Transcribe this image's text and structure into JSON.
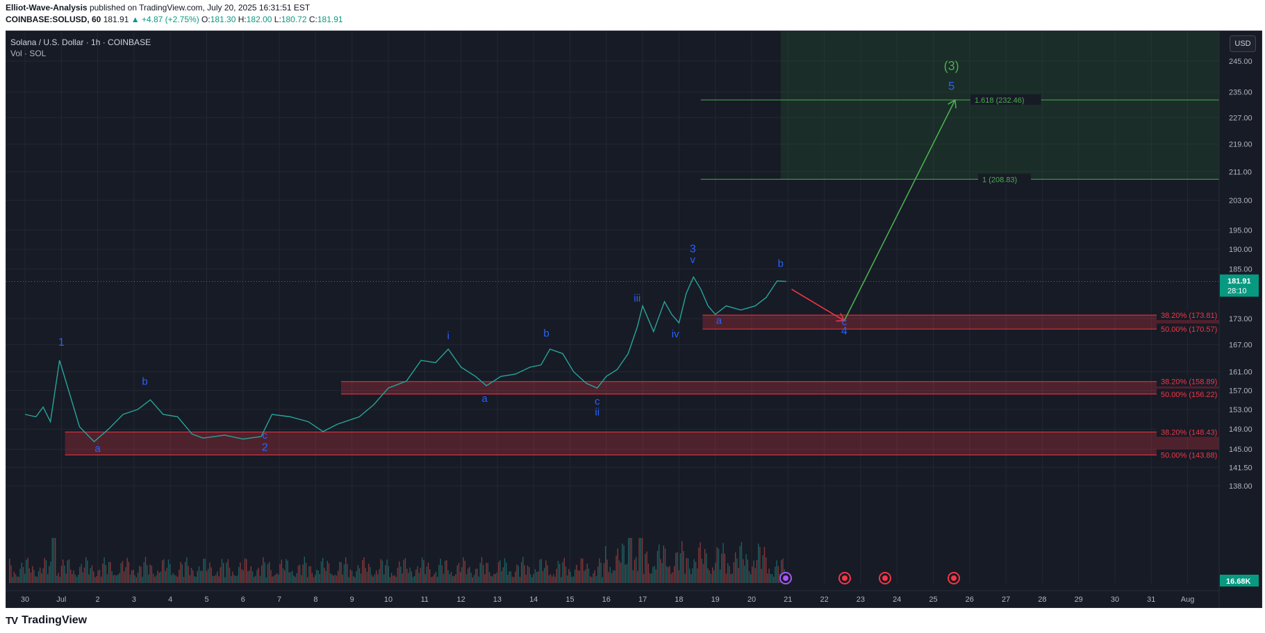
{
  "header": {
    "author": "Elliot-Wave-Analysis",
    "published": "published on TradingView.com, July 20, 2025 16:31:51 EST",
    "symbol": "COINBASE:SOLUSD, 60",
    "last": "181.91",
    "change": "▲ +4.87 (+2.75%)",
    "o_label": "O:",
    "o": "181.30",
    "h_label": "H:",
    "h": "182.00",
    "l_label": "L:",
    "l": "180.72",
    "c_label": "C:",
    "c": "181.91"
  },
  "legend": {
    "title": "Solana / U.S. Dollar · 1h · COINBASE",
    "vol": "Vol · SOL"
  },
  "currency_button": "USD",
  "footer": {
    "brand": "TradingView",
    "mark": "TV"
  },
  "chart_data": {
    "type": "line",
    "title": "Solana / U.S. Dollar · 1h · COINBASE",
    "price_axis": {
      "ticks": [
        "245.00",
        "235.00",
        "227.00",
        "219.00",
        "211.00",
        "203.00",
        "195.00",
        "190.00",
        "185.00",
        "173.00",
        "167.00",
        "161.00",
        "157.00",
        "153.00",
        "149.00",
        "145.00",
        "141.50",
        "138.00"
      ],
      "current_price": "181.91",
      "countdown": "28:10",
      "volume_label": "16.68K"
    },
    "time_axis": {
      "ticks": [
        "30",
        "Jul",
        "2",
        "3",
        "4",
        "5",
        "6",
        "7",
        "8",
        "9",
        "10",
        "11",
        "12",
        "13",
        "14",
        "15",
        "16",
        "17",
        "18",
        "19",
        "20",
        "21",
        "22",
        "23",
        "24",
        "25",
        "26",
        "27",
        "28",
        "29",
        "30",
        "31",
        "Aug"
      ]
    },
    "price_path": [
      {
        "t": 0,
        "p": 152
      },
      {
        "t": 0.3,
        "p": 151.5
      },
      {
        "t": 0.5,
        "p": 153.5
      },
      {
        "t": 0.7,
        "p": 150.5
      },
      {
        "t": 0.95,
        "p": 163.5
      },
      {
        "t": 1.2,
        "p": 157
      },
      {
        "t": 1.5,
        "p": 149.5
      },
      {
        "t": 1.9,
        "p": 146.5
      },
      {
        "t": 2.3,
        "p": 149
      },
      {
        "t": 2.7,
        "p": 152
      },
      {
        "t": 3.1,
        "p": 153
      },
      {
        "t": 3.45,
        "p": 155
      },
      {
        "t": 3.8,
        "p": 152
      },
      {
        "t": 4.2,
        "p": 151.5
      },
      {
        "t": 4.6,
        "p": 148
      },
      {
        "t": 4.9,
        "p": 147.2
      },
      {
        "t": 5.5,
        "p": 147.8
      },
      {
        "t": 6.0,
        "p": 147
      },
      {
        "t": 6.5,
        "p": 147.5
      },
      {
        "t": 6.8,
        "p": 152
      },
      {
        "t": 7.3,
        "p": 151.5
      },
      {
        "t": 7.8,
        "p": 150.5
      },
      {
        "t": 8.2,
        "p": 148.5
      },
      {
        "t": 8.6,
        "p": 150
      },
      {
        "t": 9.2,
        "p": 151.5
      },
      {
        "t": 9.6,
        "p": 154
      },
      {
        "t": 10.0,
        "p": 157.5
      },
      {
        "t": 10.5,
        "p": 159
      },
      {
        "t": 10.9,
        "p": 163.5
      },
      {
        "t": 11.3,
        "p": 163
      },
      {
        "t": 11.65,
        "p": 166
      },
      {
        "t": 12.0,
        "p": 162
      },
      {
        "t": 12.4,
        "p": 160
      },
      {
        "t": 12.7,
        "p": 158
      },
      {
        "t": 13.1,
        "p": 160
      },
      {
        "t": 13.5,
        "p": 160.5
      },
      {
        "t": 13.9,
        "p": 162
      },
      {
        "t": 14.2,
        "p": 162.5
      },
      {
        "t": 14.45,
        "p": 166
      },
      {
        "t": 14.8,
        "p": 165
      },
      {
        "t": 15.1,
        "p": 161
      },
      {
        "t": 15.45,
        "p": 158.5
      },
      {
        "t": 15.75,
        "p": 157.5
      },
      {
        "t": 16.0,
        "p": 160
      },
      {
        "t": 16.3,
        "p": 161.5
      },
      {
        "t": 16.6,
        "p": 165
      },
      {
        "t": 16.85,
        "p": 171
      },
      {
        "t": 17.0,
        "p": 176
      },
      {
        "t": 17.3,
        "p": 170
      },
      {
        "t": 17.6,
        "p": 177
      },
      {
        "t": 17.8,
        "p": 174
      },
      {
        "t": 18.0,
        "p": 172
      },
      {
        "t": 18.2,
        "p": 179
      },
      {
        "t": 18.4,
        "p": 183
      },
      {
        "t": 18.6,
        "p": 180
      },
      {
        "t": 18.8,
        "p": 176
      },
      {
        "t": 19.0,
        "p": 174
      },
      {
        "t": 19.3,
        "p": 176
      },
      {
        "t": 19.7,
        "p": 175
      },
      {
        "t": 20.1,
        "p": 176
      },
      {
        "t": 20.4,
        "p": 178
      },
      {
        "t": 20.7,
        "p": 182
      },
      {
        "t": 20.95,
        "p": 181.91
      }
    ],
    "horizontal_levels": [
      {
        "label": "1.618 (232.46)",
        "price": 232.46,
        "color": "#4caf50",
        "x_start_day": 18.6
      },
      {
        "label": "1 (208.83)",
        "price": 208.83,
        "color": "#4caf50",
        "x_start_day": 18.6
      },
      {
        "label": "38.20% (173.81)",
        "price": 173.81,
        "color": "#f23645",
        "x_start_day": 18.65
      },
      {
        "label": "50.00% (170.57)",
        "price": 170.57,
        "color": "#f23645",
        "x_start_day": 18.65
      },
      {
        "label": "38.20% (158.89)",
        "price": 158.89,
        "color": "#f23645",
        "x_start_day": 8.7
      },
      {
        "label": "50.00% (156.22)",
        "price": 156.22,
        "color": "#f23645",
        "x_start_day": 8.7
      },
      {
        "label": "38.20% (148.43)",
        "price": 148.43,
        "color": "#f23645",
        "x_start_day": 1.1
      },
      {
        "label": "50.00% (143.88)",
        "price": 143.88,
        "color": "#f23645",
        "x_start_day": 1.1
      }
    ],
    "zones": [
      {
        "top": 173.81,
        "bottom": 170.57,
        "x_start_day": 18.65
      },
      {
        "top": 158.89,
        "bottom": 156.22,
        "x_start_day": 8.7
      },
      {
        "top": 148.43,
        "bottom": 143.88,
        "x_start_day": 1.1
      }
    ],
    "target_box": {
      "top": 248,
      "bottom": 208.83,
      "x_start_day": 20.8
    },
    "projection": {
      "down": {
        "from": {
          "t": 21.1,
          "p": 180
        },
        "to": {
          "t": 22.55,
          "p": 172.5
        },
        "color": "#f23645"
      },
      "up": {
        "from": {
          "t": 22.55,
          "p": 172.5
        },
        "to": {
          "t": 25.6,
          "p": 232.46
        },
        "color": "#4caf50"
      }
    },
    "wave_labels": [
      {
        "text": "1",
        "t": 1.0,
        "p": 166.8,
        "color": "#2962ff",
        "size": 16
      },
      {
        "text": "a",
        "t": 2.0,
        "p": 144.5,
        "color": "#2962ff",
        "size": 15
      },
      {
        "text": "b",
        "t": 3.3,
        "p": 158.2,
        "color": "#2962ff",
        "size": 15
      },
      {
        "text": "c",
        "t": 6.6,
        "p": 147.1,
        "color": "#2962ff",
        "size": 15
      },
      {
        "text": "2",
        "t": 6.6,
        "p": 144.7,
        "color": "#2962ff",
        "size": 16
      },
      {
        "text": "i",
        "t": 11.65,
        "p": 168.3,
        "color": "#2962ff",
        "size": 15
      },
      {
        "text": "a",
        "t": 12.65,
        "p": 154.6,
        "color": "#2962ff",
        "size": 15
      },
      {
        "text": "b",
        "t": 14.35,
        "p": 168.8,
        "color": "#2962ff",
        "size": 15
      },
      {
        "text": "c",
        "t": 15.75,
        "p": 154.0,
        "color": "#2962ff",
        "size": 15
      },
      {
        "text": "ii",
        "t": 15.75,
        "p": 151.8,
        "color": "#2962ff",
        "size": 15
      },
      {
        "text": "iii",
        "t": 16.85,
        "p": 177.0,
        "color": "#2962ff",
        "size": 15
      },
      {
        "text": "iv",
        "t": 17.9,
        "p": 168.7,
        "color": "#2962ff",
        "size": 15
      },
      {
        "text": "3",
        "t": 18.38,
        "p": 189.2,
        "color": "#2962ff",
        "size": 16
      },
      {
        "text": "v",
        "t": 18.38,
        "p": 186.5,
        "color": "#2962ff",
        "size": 15
      },
      {
        "text": "a",
        "t": 19.1,
        "p": 171.8,
        "color": "#2962ff",
        "size": 15
      },
      {
        "text": "b",
        "t": 20.8,
        "p": 185.5,
        "color": "#2962ff",
        "size": 15
      },
      {
        "text": "c",
        "t": 22.55,
        "p": 171.5,
        "color": "#2962ff",
        "size": 15
      },
      {
        "text": "4",
        "t": 22.55,
        "p": 169.3,
        "color": "#2962ff",
        "size": 16
      },
      {
        "text": "(3)",
        "t": 25.5,
        "p": 242.0,
        "color": "#4caf50",
        "size": 18
      },
      {
        "text": "5",
        "t": 25.5,
        "p": 235.6,
        "color": "#2962ff",
        "size": 17
      }
    ]
  }
}
